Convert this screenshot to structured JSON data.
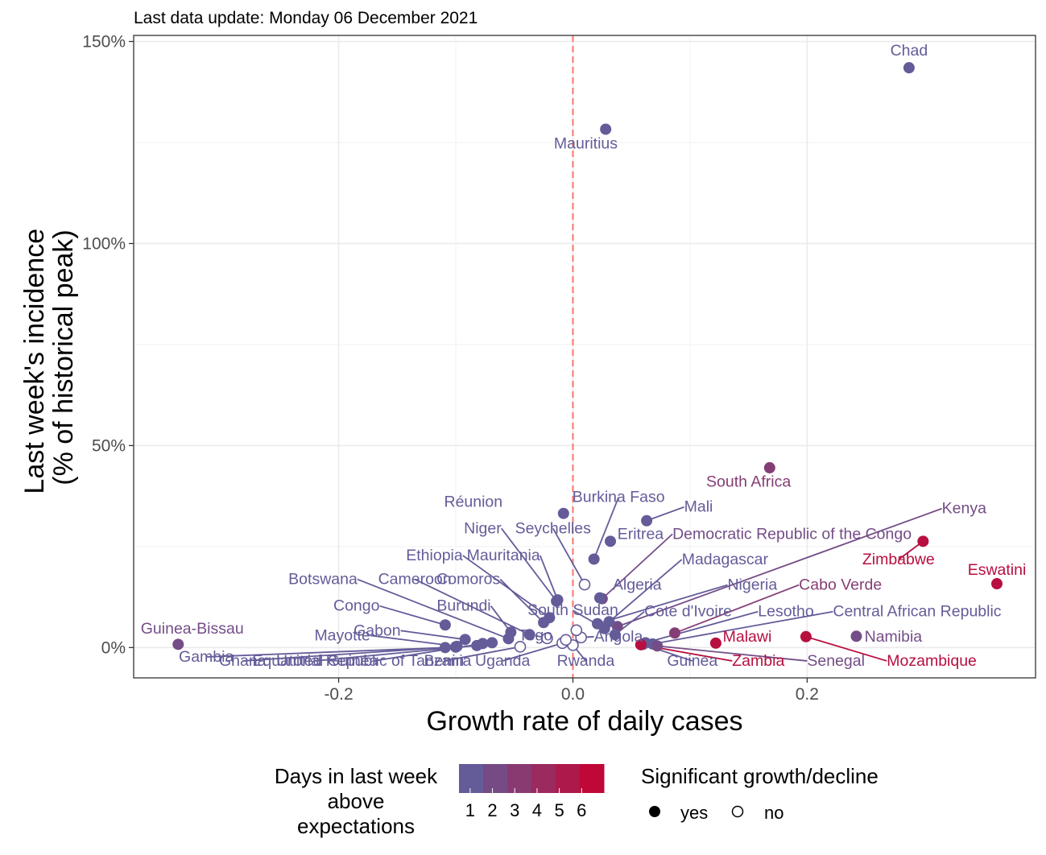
{
  "chart_data": {
    "type": "scatter",
    "subtitle": "Last data update: Monday 06 December 2021",
    "xlabel": "Growth rate of daily cases",
    "ylabel": [
      "Last week's incidence",
      "(% of historical peak)"
    ],
    "xlim": [
      -0.375,
      0.395
    ],
    "ylim": [
      -7.5,
      151.5
    ],
    "x_ticks": [
      -0.2,
      0.0,
      0.2
    ],
    "x_tick_labels": [
      "-0.2",
      "0.0",
      "0.2"
    ],
    "y_ticks": [
      0,
      50,
      100,
      150
    ],
    "y_tick_labels": [
      "0%",
      "50%",
      "100%",
      "150%"
    ],
    "reference_line": {
      "x": 0,
      "style": "dashed",
      "color": "#f8766d"
    },
    "grid": true,
    "color_scale": {
      "low": "#5b64a2",
      "high": "#c8002d",
      "min": 0.5,
      "max": 7
    },
    "points": [
      {
        "label": "Chad",
        "x": 0.287,
        "y": 143.5,
        "days": 1,
        "sig": "yes",
        "lx": 0.287,
        "ly": 146.5,
        "anchor": "middle",
        "line": false
      },
      {
        "label": "Mauritius",
        "x": 0.028,
        "y": 128.3,
        "days": 1,
        "sig": "yes",
        "lx": 0.011,
        "ly": 123.5,
        "anchor": "middle",
        "line": false
      },
      {
        "label": "South Africa",
        "x": 0.168,
        "y": 44.5,
        "days": 3,
        "sig": "yes",
        "lx": 0.15,
        "ly": 39.8,
        "anchor": "middle",
        "line": false
      },
      {
        "label": "Réunion",
        "x": -0.008,
        "y": 33.2,
        "days": 1,
        "sig": "yes",
        "lx": -0.085,
        "ly": 34.8,
        "anchor": "middle",
        "line": false
      },
      {
        "label": "Burkina Faso",
        "x": 0.018,
        "y": 21.9,
        "days": 1,
        "sig": "yes",
        "lx": 0.039,
        "ly": 36.0,
        "anchor": "middle",
        "line": true
      },
      {
        "label": "Mali",
        "x": 0.063,
        "y": 31.4,
        "days": 1,
        "sig": "yes",
        "lx": 0.095,
        "ly": 33.6,
        "anchor": "start",
        "line": true
      },
      {
        "label": "Niger",
        "x": -0.014,
        "y": 11.5,
        "days": 1,
        "sig": "yes",
        "lx": -0.061,
        "ly": 28.3,
        "anchor": "end",
        "line": true
      },
      {
        "label": "Seychelles",
        "x": 0.01,
        "y": 15.6,
        "days": 1,
        "sig": "no",
        "lx": -0.017,
        "ly": 28.3,
        "anchor": "middle",
        "line": true
      },
      {
        "label": "Eritrea",
        "x": 0.032,
        "y": 26.3,
        "days": 1,
        "sig": "yes",
        "lx": 0.038,
        "ly": 26.9,
        "anchor": "start",
        "line": false
      },
      {
        "label": "Democratic Republic of the Congo",
        "x": 0.025,
        "y": 12.1,
        "days": 2,
        "sig": "yes",
        "lx": 0.085,
        "ly": 26.9,
        "anchor": "start",
        "line": true
      },
      {
        "label": "Kenya",
        "x": 0.038,
        "y": 5.2,
        "days": 2,
        "sig": "yes",
        "lx": 0.315,
        "ly": 33.2,
        "anchor": "start",
        "line": true
      },
      {
        "label": "Zimbabwe",
        "x": 0.299,
        "y": 26.3,
        "days": 6,
        "sig": "yes",
        "lx": 0.278,
        "ly": 20.6,
        "anchor": "middle",
        "line": true
      },
      {
        "label": "Eswatini",
        "x": 0.362,
        "y": 15.8,
        "days": 6,
        "sig": "yes",
        "lx": 0.362,
        "ly": 18.0,
        "anchor": "middle",
        "line": false
      },
      {
        "label": "Ethiopia",
        "x": -0.02,
        "y": 7.4,
        "days": 1,
        "sig": "yes",
        "lx": -0.094,
        "ly": 21.6,
        "anchor": "end",
        "line": true
      },
      {
        "label": "Mauritania",
        "x": -0.013,
        "y": 11.8,
        "days": 1,
        "sig": "yes",
        "lx": -0.028,
        "ly": 21.6,
        "anchor": "end",
        "line": true
      },
      {
        "label": "Madagascar",
        "x": 0.031,
        "y": 6.4,
        "days": 1,
        "sig": "yes",
        "lx": 0.093,
        "ly": 20.6,
        "anchor": "start",
        "line": true
      },
      {
        "label": "Botswana",
        "x": -0.055,
        "y": 2.2,
        "days": 1,
        "sig": "yes",
        "lx": -0.184,
        "ly": 15.7,
        "anchor": "end",
        "line": true
      },
      {
        "label": "Cameroon",
        "x": -0.037,
        "y": 3.2,
        "days": 1,
        "sig": "yes",
        "lx": -0.135,
        "ly": 15.7,
        "anchor": "middle",
        "line": true
      },
      {
        "label": "Comoros",
        "x": -0.025,
        "y": 6.2,
        "days": 1,
        "sig": "yes",
        "lx": -0.062,
        "ly": 15.7,
        "anchor": "end",
        "line": true
      },
      {
        "label": "Algeria",
        "x": 0.023,
        "y": 12.3,
        "days": 1,
        "sig": "yes",
        "lx": 0.034,
        "ly": 14.3,
        "anchor": "start",
        "line": false
      },
      {
        "label": "Nigeria",
        "x": 0.021,
        "y": 5.9,
        "days": 1,
        "sig": "yes",
        "lx": 0.132,
        "ly": 14.3,
        "anchor": "start",
        "line": true
      },
      {
        "label": "Cabo Verde",
        "x": 0.087,
        "y": 3.6,
        "days": 3,
        "sig": "yes",
        "lx": 0.193,
        "ly": 14.3,
        "anchor": "start",
        "line": true
      },
      {
        "label": "Congo",
        "x": -0.109,
        "y": 5.6,
        "days": 1,
        "sig": "yes",
        "lx": -0.165,
        "ly": 9.1,
        "anchor": "end",
        "line": true
      },
      {
        "label": "Burundi",
        "x": -0.053,
        "y": 3.8,
        "days": 1,
        "sig": "yes",
        "lx": -0.07,
        "ly": 9.1,
        "anchor": "end",
        "line": true
      },
      {
        "label": "South Sudan",
        "x": 0.027,
        "y": 4.7,
        "days": 1,
        "sig": "yes",
        "lx": 0.0,
        "ly": 8.0,
        "anchor": "middle",
        "line": true
      },
      {
        "label": "Cote d'Ivoire",
        "x": 0.036,
        "y": 3.2,
        "days": 1,
        "sig": "yes",
        "lx": 0.061,
        "ly": 7.7,
        "anchor": "start",
        "line": true
      },
      {
        "label": "Lesotho",
        "x": 0.062,
        "y": 1.2,
        "days": 1,
        "sig": "yes",
        "lx": 0.158,
        "ly": 7.7,
        "anchor": "start",
        "line": true
      },
      {
        "label": "Central African Republic",
        "x": 0.068,
        "y": 0.9,
        "days": 1,
        "sig": "yes",
        "lx": 0.222,
        "ly": 7.7,
        "anchor": "start",
        "line": true
      },
      {
        "label": "Guinea-Bissau",
        "x": -0.337,
        "y": 0.8,
        "days": 2,
        "sig": "yes",
        "lx": -0.325,
        "ly": 3.5,
        "anchor": "middle",
        "line": false
      },
      {
        "label": "Gabon",
        "x": -0.092,
        "y": 2.0,
        "days": 1,
        "sig": "yes",
        "lx": -0.147,
        "ly": 3.0,
        "anchor": "end",
        "line": true
      },
      {
        "label": "Togo",
        "x": -0.022,
        "y": 2.3,
        "days": 1,
        "sig": "no",
        "lx": -0.032,
        "ly": 1.8,
        "anchor": "middle",
        "line": true
      },
      {
        "label": "Angola",
        "x": 0.007,
        "y": 2.5,
        "days": 1,
        "sig": "no",
        "lx": 0.018,
        "ly": 1.5,
        "anchor": "start",
        "line": true
      },
      {
        "label": "Malawi",
        "x": 0.122,
        "y": 1.1,
        "days": 6,
        "sig": "yes",
        "lx": 0.128,
        "ly": 1.5,
        "anchor": "start",
        "line": false
      },
      {
        "label": "Namibia",
        "x": 0.242,
        "y": 2.8,
        "days": 2,
        "sig": "yes",
        "lx": 0.249,
        "ly": 1.5,
        "anchor": "start",
        "line": false
      },
      {
        "label": "Mayotte",
        "x": -0.099,
        "y": 0.3,
        "days": 1,
        "sig": "yes",
        "lx": -0.173,
        "ly": 1.8,
        "anchor": "end",
        "line": true
      },
      {
        "label": "Gambia",
        "x": -0.109,
        "y": 0.0,
        "days": 1,
        "sig": "yes",
        "lx": -0.313,
        "ly": -3.5,
        "anchor": "middle",
        "line": true
      },
      {
        "label": "Ghana",
        "x": -0.1,
        "y": 0.2,
        "days": 1,
        "sig": "yes",
        "lx": -0.282,
        "ly": -4.5,
        "anchor": "middle",
        "line": true
      },
      {
        "label": "Equatorial Guinea",
        "x": -0.082,
        "y": 0.5,
        "days": 1,
        "sig": "yes",
        "lx": -0.22,
        "ly": -4.5,
        "anchor": "middle",
        "line": true
      },
      {
        "label": "United Republic of Tanzania",
        "x": -0.077,
        "y": 1.0,
        "days": 1,
        "sig": "yes",
        "lx": -0.17,
        "ly": -4.5,
        "anchor": "middle",
        "line": true
      },
      {
        "label": "Benin",
        "x": -0.045,
        "y": 0.2,
        "days": 1,
        "sig": "no",
        "lx": -0.11,
        "ly": -4.5,
        "anchor": "middle",
        "line": true
      },
      {
        "label": "Uganda",
        "x": -0.009,
        "y": 1.1,
        "days": 1,
        "sig": "no",
        "lx": -0.06,
        "ly": -4.5,
        "anchor": "middle",
        "line": true
      },
      {
        "label": "Rwanda",
        "x": 0.0,
        "y": 0.6,
        "days": 1,
        "sig": "no",
        "lx": 0.011,
        "ly": -4.5,
        "anchor": "middle",
        "line": true
      },
      {
        "label": "Guinea",
        "x": 0.06,
        "y": 0.8,
        "days": 1,
        "sig": "yes",
        "lx": 0.102,
        "ly": -4.5,
        "anchor": "middle",
        "line": true
      },
      {
        "label": "Zambia",
        "x": 0.058,
        "y": 0.7,
        "days": 6,
        "sig": "yes",
        "lx": 0.136,
        "ly": -4.5,
        "anchor": "start",
        "line": true
      },
      {
        "label": "Senegal",
        "x": 0.072,
        "y": 0.4,
        "days": 2,
        "sig": "yes",
        "lx": 0.2,
        "ly": -4.5,
        "anchor": "start",
        "line": true
      },
      {
        "label": "Mozambique",
        "x": 0.199,
        "y": 2.7,
        "days": 6,
        "sig": "yes",
        "lx": 0.268,
        "ly": -4.5,
        "anchor": "start",
        "line": true
      },
      {
        "label": "",
        "x": 0.003,
        "y": 4.3,
        "days": 1,
        "sig": "no",
        "lx": 0.003,
        "ly": 4.3,
        "anchor": "middle",
        "line": false
      },
      {
        "label": "",
        "x": -0.006,
        "y": 1.9,
        "days": 1,
        "sig": "no",
        "lx": -0.006,
        "ly": 1.9,
        "anchor": "middle",
        "line": false
      },
      {
        "label": "",
        "x": -0.1,
        "y": 0.1,
        "days": 1,
        "sig": "yes",
        "lx": -0.1,
        "ly": 0.1,
        "anchor": "middle",
        "line": false
      },
      {
        "label": "",
        "x": -0.069,
        "y": 1.2,
        "days": 1,
        "sig": "yes",
        "lx": -0.069,
        "ly": 1.2,
        "anchor": "middle",
        "line": false
      }
    ],
    "legend": {
      "color_title": [
        "Days in last week",
        "above",
        "expectations"
      ],
      "color_breaks": [
        "1",
        "2",
        "3",
        "4",
        "5",
        "6"
      ],
      "shape_title": "Significant growth/decline",
      "shape_items": [
        "yes",
        "no"
      ],
      "position": "bottom"
    }
  }
}
